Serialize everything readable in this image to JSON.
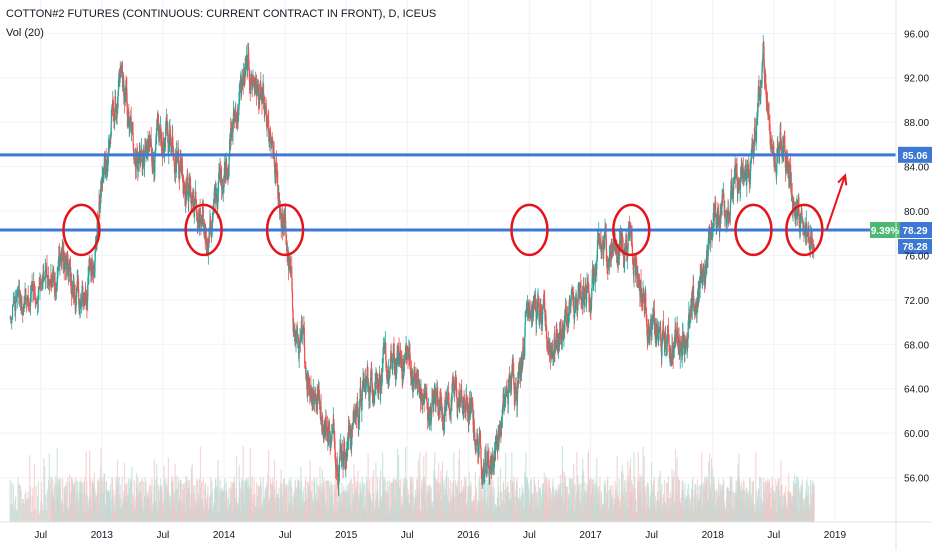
{
  "chart_data": {
    "type": "candlestick",
    "title": "COTTON#2 FUTURES (CONTINUOUS: CURRENT CONTRACT IN FRONT), D, ICEUS",
    "indicator": "Vol (20)",
    "ylim": [
      52,
      99
    ],
    "y_ticks": [
      "56.00",
      "60.00",
      "64.00",
      "68.00",
      "72.00",
      "76.00",
      "80.00",
      "84.00",
      "88.00",
      "92.00",
      "96.00"
    ],
    "y_tick_values": [
      56,
      60,
      64,
      68,
      72,
      76,
      80,
      84,
      88,
      92,
      96
    ],
    "x_labels": [
      "Jul",
      "2013",
      "Jul",
      "2014",
      "Jul",
      "2015",
      "Jul",
      "2016",
      "Jul",
      "2017",
      "Jul",
      "2018",
      "Jul",
      "2019"
    ],
    "x_label_dates": [
      "2012-07",
      "2013-01",
      "2013-07",
      "2014-01",
      "2014-07",
      "2015-01",
      "2015-07",
      "2016-01",
      "2016-07",
      "2017-01",
      "2017-07",
      "2018-01",
      "2018-07",
      "2019-01"
    ],
    "xlim_dates": [
      "2012-03",
      "2019-07"
    ],
    "price_path": [
      [
        "2012-04",
        70
      ],
      [
        "2012-06",
        72
      ],
      [
        "2012-08",
        74
      ],
      [
        "2012-09",
        76
      ],
      [
        "2012-10",
        73
      ],
      [
        "2012-11",
        71
      ],
      [
        "2012-12",
        75
      ],
      [
        "2013-01",
        82
      ],
      [
        "2013-02",
        88
      ],
      [
        "2013-03",
        91
      ],
      [
        "2013-04",
        86
      ],
      [
        "2013-05",
        85
      ],
      [
        "2013-06",
        85
      ],
      [
        "2013-07",
        86
      ],
      [
        "2013-08",
        87
      ],
      [
        "2013-09",
        84
      ],
      [
        "2013-10",
        81
      ],
      [
        "2013-11",
        77
      ],
      [
        "2013-12",
        80
      ],
      [
        "2014-01",
        84
      ],
      [
        "2014-02",
        88
      ],
      [
        "2014-03",
        92
      ],
      [
        "2014-04",
        92
      ],
      [
        "2014-05",
        88
      ],
      [
        "2014-06",
        83
      ],
      [
        "2014-07",
        78
      ],
      [
        "2014-08",
        69
      ],
      [
        "2014-09",
        66
      ],
      [
        "2014-10",
        64
      ],
      [
        "2014-11",
        61
      ],
      [
        "2014-12",
        59
      ],
      [
        "2015-01",
        59
      ],
      [
        "2015-02",
        62
      ],
      [
        "2015-03",
        64
      ],
      [
        "2015-04",
        66
      ],
      [
        "2015-05",
        65
      ],
      [
        "2015-06",
        66
      ],
      [
        "2015-07",
        67
      ],
      [
        "2015-08",
        64
      ],
      [
        "2015-09",
        62
      ],
      [
        "2015-10",
        63
      ],
      [
        "2015-11",
        63
      ],
      [
        "2015-12",
        63
      ],
      [
        "2016-01",
        62
      ],
      [
        "2016-02",
        59
      ],
      [
        "2016-03",
        57
      ],
      [
        "2016-04",
        60
      ],
      [
        "2016-05",
        64
      ],
      [
        "2016-06",
        66
      ],
      [
        "2016-07",
        73
      ],
      [
        "2016-08",
        70
      ],
      [
        "2016-09",
        68
      ],
      [
        "2016-10",
        69
      ],
      [
        "2016-11",
        71
      ],
      [
        "2016-12",
        71
      ],
      [
        "2017-01",
        73
      ],
      [
        "2017-02",
        76
      ],
      [
        "2017-03",
        77
      ],
      [
        "2017-04",
        77
      ],
      [
        "2017-05",
        78
      ],
      [
        "2017-06",
        73
      ],
      [
        "2017-07",
        69
      ],
      [
        "2017-08",
        68
      ],
      [
        "2017-09",
        68
      ],
      [
        "2017-10",
        69
      ],
      [
        "2017-11",
        70
      ],
      [
        "2017-12",
        74
      ],
      [
        "2018-01",
        79
      ],
      [
        "2018-02",
        81
      ],
      [
        "2018-03",
        82
      ],
      [
        "2018-04",
        82
      ],
      [
        "2018-05",
        85
      ],
      [
        "2018-06",
        93
      ],
      [
        "2018-07",
        85
      ],
      [
        "2018-08",
        86
      ],
      [
        "2018-09",
        81
      ],
      [
        "2018-10",
        77
      ],
      [
        "2018-11",
        78
      ]
    ],
    "horizontal_lines": [
      {
        "value": 85.06,
        "label": "85.06",
        "color": "#3d78d4"
      },
      {
        "value": 78.29,
        "label": "78.29",
        "color": "#3d78d4"
      }
    ],
    "markers": [
      {
        "label": "9.39%",
        "color": "#4cb872"
      },
      {
        "label": "78.28",
        "color": "#3d78d4"
      }
    ],
    "circle_dates": [
      "2012-11",
      "2013-11",
      "2014-07",
      "2016-07",
      "2017-05",
      "2018-05",
      "2018-10"
    ],
    "circle_value": 78.3,
    "arrow": {
      "from": [
        "2018-11",
        78.3
      ],
      "to": [
        "2019-02",
        83.2
      ]
    },
    "up_color": "#26a69a",
    "down_color": "#ef5350"
  }
}
